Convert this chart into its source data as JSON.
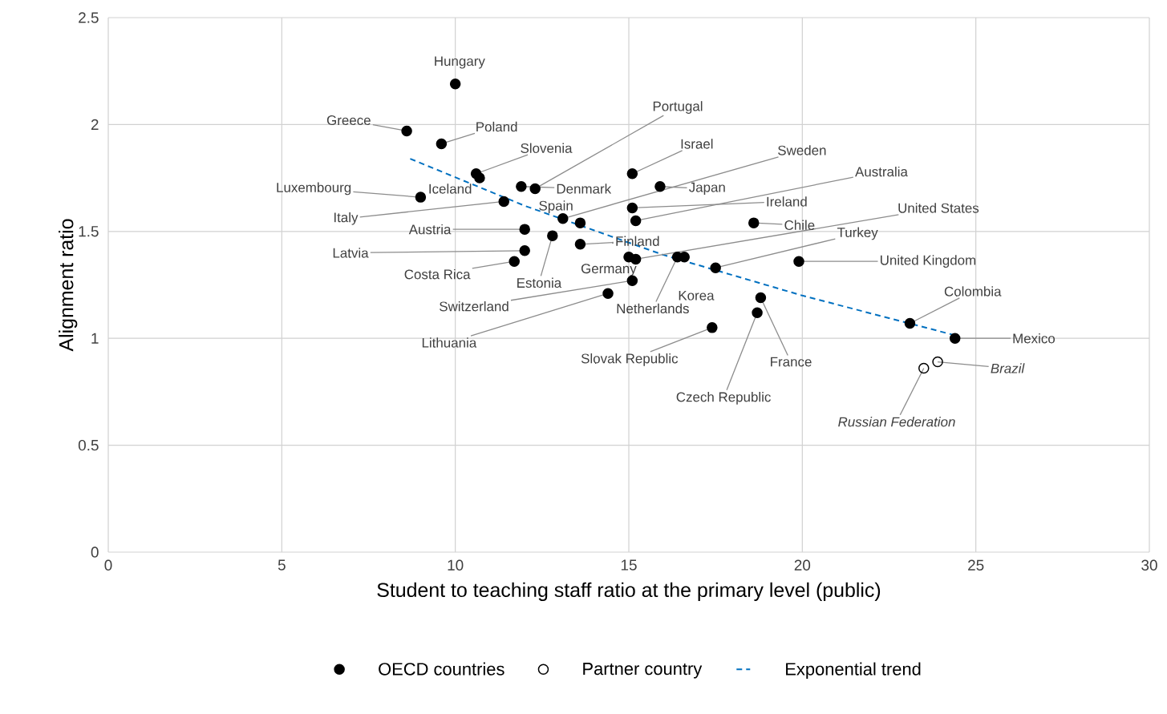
{
  "chart_data": {
    "type": "scatter",
    "xlabel": "Student to teaching staff ratio at the primary level (public)",
    "ylabel": "Alignment ratio",
    "xlim": [
      0,
      30
    ],
    "xticks": [
      0,
      5,
      10,
      15,
      20,
      25,
      30
    ],
    "ylim": [
      0,
      2.5
    ],
    "yticks": [
      0,
      {
        "value": 0.5,
        "label": "0.5"
      },
      {
        "value": 1,
        "label": "1"
      },
      {
        "value": 1.5,
        "label": "1.5"
      },
      {
        "value": 2,
        "label": "2"
      },
      {
        "value": 2.5,
        "label": "2.5"
      }
    ],
    "grid": true,
    "legend": "bottom",
    "marker": "circle",
    "series": [
      {
        "name": "OECD countries",
        "color": "#000000",
        "x": [
          10.0,
          8.6,
          9.6,
          12.3,
          10.6,
          15.1,
          13.1,
          10.7,
          11.9,
          15.2,
          9.0,
          15.9,
          15.1,
          11.4,
          15.2,
          18.6,
          13.6,
          12.0,
          17.5,
          13.6,
          12.0,
          19.9,
          11.7,
          15.0,
          12.8,
          16.6,
          23.1,
          15.1,
          16.4,
          24.4,
          14.4,
          17.4,
          18.8,
          18.7
        ],
        "values": [
          2.19,
          1.97,
          1.91,
          1.7,
          1.77,
          1.77,
          1.56,
          1.75,
          1.71,
          1.55,
          1.66,
          1.71,
          1.61,
          1.64,
          1.37,
          1.54,
          1.54,
          1.51,
          1.33,
          1.44,
          1.41,
          1.36,
          1.36,
          1.38,
          1.48,
          1.38,
          1.07,
          1.27,
          1.38,
          1.0,
          1.21,
          1.05,
          1.19,
          1.12
        ]
      },
      {
        "name": "Partner country",
        "color": "#000000",
        "x": [
          23.9,
          23.5
        ],
        "values": [
          0.89,
          0.86
        ]
      },
      {
        "name": "Exponential trend",
        "type": "line",
        "color": "#0070c0",
        "line_style": "dashed",
        "marker": "none",
        "x": [
          8.7,
          12,
          16,
          20,
          24.5
        ],
        "values": [
          1.84,
          1.62,
          1.39,
          1.2,
          1.01
        ]
      }
    ],
    "annotations": [
      {
        "text": "Hungary",
        "x": 10.0,
        "y": 2.19
      },
      {
        "text": "Greece",
        "x": 8.6,
        "y": 1.97
      },
      {
        "text": "Poland",
        "x": 9.6,
        "y": 1.91
      },
      {
        "text": "Portugal",
        "x": 12.3,
        "y": 1.7
      },
      {
        "text": "Slovenia",
        "x": 10.6,
        "y": 1.77
      },
      {
        "text": "Israel",
        "x": 15.1,
        "y": 1.77
      },
      {
        "text": "Sweden",
        "x": 13.1,
        "y": 1.56
      },
      {
        "text": "Iceland",
        "x": 10.7,
        "y": 1.75
      },
      {
        "text": "Denmark",
        "x": 11.9,
        "y": 1.71
      },
      {
        "text": "Australia",
        "x": 15.2,
        "y": 1.55
      },
      {
        "text": "Luxembourg",
        "x": 9.0,
        "y": 1.66
      },
      {
        "text": "Japan",
        "x": 15.9,
        "y": 1.71
      },
      {
        "text": "Ireland",
        "x": 15.1,
        "y": 1.61
      },
      {
        "text": "Italy",
        "x": 11.4,
        "y": 1.64
      },
      {
        "text": "United States",
        "x": 15.2,
        "y": 1.37
      },
      {
        "text": "Chile",
        "x": 18.6,
        "y": 1.54
      },
      {
        "text": "Spain",
        "x": 13.6,
        "y": 1.54
      },
      {
        "text": "Austria",
        "x": 12.0,
        "y": 1.51
      },
      {
        "text": "Turkey",
        "x": 17.5,
        "y": 1.33
      },
      {
        "text": "Finland",
        "x": 13.6,
        "y": 1.44
      },
      {
        "text": "Latvia",
        "x": 12.0,
        "y": 1.41
      },
      {
        "text": "United Kingdom",
        "x": 19.9,
        "y": 1.36
      },
      {
        "text": "Costa Rica",
        "x": 11.7,
        "y": 1.36
      },
      {
        "text": "Germany",
        "x": 15.0,
        "y": 1.38
      },
      {
        "text": "Estonia",
        "x": 12.8,
        "y": 1.48
      },
      {
        "text": "Korea",
        "x": 16.6,
        "y": 1.38
      },
      {
        "text": "Colombia",
        "x": 23.1,
        "y": 1.07
      },
      {
        "text": "Switzerland",
        "x": 15.1,
        "y": 1.27
      },
      {
        "text": "Netherlands",
        "x": 16.4,
        "y": 1.38
      },
      {
        "text": "Mexico",
        "x": 24.4,
        "y": 1.0
      },
      {
        "text": "Lithuania",
        "x": 14.4,
        "y": 1.21
      },
      {
        "text": "Slovak Republic",
        "x": 17.4,
        "y": 1.05
      },
      {
        "text": "France",
        "x": 18.8,
        "y": 1.19
      },
      {
        "text": "Brazil",
        "x": 23.9,
        "y": 0.89
      },
      {
        "text": "Czech Republic",
        "x": 18.7,
        "y": 1.12
      },
      {
        "text": "Russian Federation",
        "x": 23.5,
        "y": 0.86
      }
    ]
  }
}
